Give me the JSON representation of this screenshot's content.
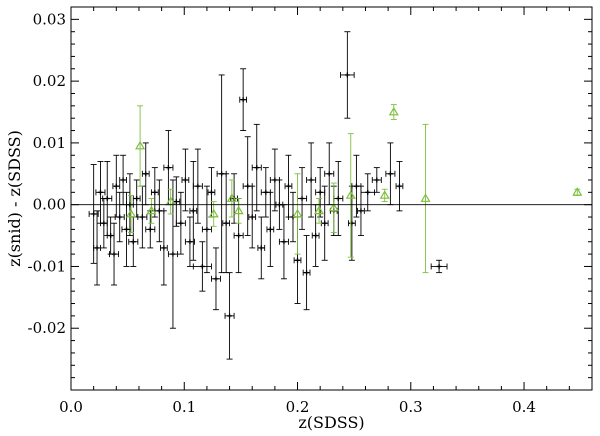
{
  "chart_data": {
    "type": "scatter",
    "xlabel": "z(SDSS)",
    "ylabel": "z(snid) - z(SDSS)",
    "xlim": [
      0.0,
      0.46
    ],
    "ylim": [
      -0.03,
      0.032
    ],
    "xticks": [
      0.0,
      0.1,
      0.2,
      0.3,
      0.4
    ],
    "xtick_labels": [
      "0.0",
      "0.1",
      "0.2",
      "0.3",
      "0.4"
    ],
    "yticks": [
      0.03,
      0.02,
      0.01,
      0.0,
      -0.01,
      -0.02
    ],
    "ytick_labels": [
      "0.03",
      "0.02",
      "0.01",
      "0.00",
      "-0.01",
      "-0.02"
    ],
    "reference_line_y": 0.0,
    "grid": false,
    "colors": {
      "series_black": "#000000",
      "series_green": "#7fbf3f",
      "axes": "#000000"
    },
    "series": [
      {
        "marker": "plus",
        "color": "#000000",
        "points": [
          {
            "x": 0.02,
            "y": -0.0015,
            "yerr": 0.008,
            "xerr": 0.004
          },
          {
            "x": 0.023,
            "y": -0.007,
            "yerr": 0.006,
            "xerr": 0.003
          },
          {
            "x": 0.026,
            "y": 0.002,
            "yerr": 0.005,
            "xerr": 0.004
          },
          {
            "x": 0.029,
            "y": -0.003,
            "yerr": 0.004,
            "xerr": 0.003
          },
          {
            "x": 0.032,
            "y": 0.001,
            "yerr": 0.006,
            "xerr": 0.004
          },
          {
            "x": 0.035,
            "y": -0.005,
            "yerr": 0.003,
            "xerr": 0.003
          },
          {
            "x": 0.038,
            "y": -0.008,
            "yerr": 0.005,
            "xerr": 0.004
          },
          {
            "x": 0.04,
            "y": 0.003,
            "yerr": 0.005,
            "xerr": 0.003
          },
          {
            "x": 0.043,
            "y": -0.002,
            "yerr": 0.004,
            "xerr": 0.004
          },
          {
            "x": 0.046,
            "y": 0.004,
            "yerr": 0.004,
            "xerr": 0.003
          },
          {
            "x": 0.049,
            "y": -0.004,
            "yerr": 0.006,
            "xerr": 0.004
          },
          {
            "x": 0.052,
            "y": 0.0,
            "yerr": 0.005,
            "xerr": 0.003
          },
          {
            "x": 0.055,
            "y": -0.006,
            "yerr": 0.004,
            "xerr": 0.004
          },
          {
            "x": 0.058,
            "y": 0.001,
            "yerr": 0.003,
            "xerr": 0.003
          },
          {
            "x": 0.063,
            "y": -0.002,
            "yerr": 0.005,
            "xerr": 0.004
          },
          {
            "x": 0.066,
            "y": 0.005,
            "yerr": 0.005,
            "xerr": 0.003
          },
          {
            "x": 0.07,
            "y": -0.004,
            "yerr": 0.003,
            "xerr": 0.004
          },
          {
            "x": 0.074,
            "y": 0.002,
            "yerr": 0.004,
            "xerr": 0.003
          },
          {
            "x": 0.078,
            "y": -0.001,
            "yerr": 0.005,
            "xerr": 0.004
          },
          {
            "x": 0.082,
            "y": -0.007,
            "yerr": 0.006,
            "xerr": 0.003
          },
          {
            "x": 0.086,
            "y": 0.006,
            "yerr": 0.006,
            "xerr": 0.004
          },
          {
            "x": 0.09,
            "y": -0.008,
            "yerr": 0.012,
            "xerr": 0.004
          },
          {
            "x": 0.093,
            "y": 0.0005,
            "yerr": 0.004,
            "xerr": 0.003
          },
          {
            "x": 0.097,
            "y": -0.003,
            "yerr": 0.005,
            "xerr": 0.004
          },
          {
            "x": 0.101,
            "y": 0.004,
            "yerr": 0.005,
            "xerr": 0.003
          },
          {
            "x": 0.105,
            "y": -0.006,
            "yerr": 0.004,
            "xerr": 0.004
          },
          {
            "x": 0.108,
            "y": -0.001,
            "yerr": 0.008,
            "xerr": 0.003
          },
          {
            "x": 0.112,
            "y": 0.003,
            "yerr": 0.006,
            "xerr": 0.004
          },
          {
            "x": 0.116,
            "y": -0.01,
            "yerr": 0.004,
            "xerr": 0.008
          },
          {
            "x": 0.12,
            "y": -0.004,
            "yerr": 0.007,
            "xerr": 0.004
          },
          {
            "x": 0.124,
            "y": 0.002,
            "yerr": 0.004,
            "xerr": 0.003
          },
          {
            "x": 0.128,
            "y": -0.012,
            "yerr": 0.005,
            "xerr": 0.004
          },
          {
            "x": 0.133,
            "y": 0.005,
            "yerr": 0.016,
            "xerr": 0.004
          },
          {
            "x": 0.137,
            "y": -0.003,
            "yerr": 0.008,
            "xerr": 0.003
          },
          {
            "x": 0.14,
            "y": -0.018,
            "yerr": 0.007,
            "xerr": 0.004
          },
          {
            "x": 0.144,
            "y": 0.001,
            "yerr": 0.004,
            "xerr": 0.003
          },
          {
            "x": 0.148,
            "y": -0.005,
            "yerr": 0.006,
            "xerr": 0.004
          },
          {
            "x": 0.152,
            "y": 0.017,
            "yerr": 0.005,
            "xerr": 0.003
          },
          {
            "x": 0.156,
            "y": 0.003,
            "yerr": 0.008,
            "xerr": 0.004
          },
          {
            "x": 0.16,
            "y": -0.002,
            "yerr": 0.005,
            "xerr": 0.003
          },
          {
            "x": 0.164,
            "y": 0.006,
            "yerr": 0.007,
            "xerr": 0.004
          },
          {
            "x": 0.168,
            "y": -0.007,
            "yerr": 0.005,
            "xerr": 0.003
          },
          {
            "x": 0.172,
            "y": 0.002,
            "yerr": 0.004,
            "xerr": 0.004
          },
          {
            "x": 0.176,
            "y": -0.004,
            "yerr": 0.006,
            "xerr": 0.003
          },
          {
            "x": 0.18,
            "y": 0.004,
            "yerr": 0.005,
            "xerr": 0.004
          },
          {
            "x": 0.184,
            "y": 0.0,
            "yerr": 0.004,
            "xerr": 0.003
          },
          {
            "x": 0.188,
            "y": -0.006,
            "yerr": 0.006,
            "xerr": 0.004
          },
          {
            "x": 0.192,
            "y": 0.003,
            "yerr": 0.005,
            "xerr": 0.003
          },
          {
            "x": 0.196,
            "y": -0.002,
            "yerr": 0.004,
            "xerr": 0.004
          },
          {
            "x": 0.2,
            "y": -0.009,
            "yerr": 0.007,
            "xerr": 0.003
          },
          {
            "x": 0.204,
            "y": 0.001,
            "yerr": 0.005,
            "xerr": 0.004
          },
          {
            "x": 0.208,
            "y": -0.011,
            "yerr": 0.006,
            "xerr": 0.003
          },
          {
            "x": 0.212,
            "y": 0.004,
            "yerr": 0.006,
            "xerr": 0.004
          },
          {
            "x": 0.216,
            "y": -0.005,
            "yerr": 0.005,
            "xerr": 0.003
          },
          {
            "x": 0.22,
            "y": 0.002,
            "yerr": 0.004,
            "xerr": 0.004
          },
          {
            "x": 0.224,
            "y": -0.003,
            "yerr": 0.006,
            "xerr": 0.003
          },
          {
            "x": 0.228,
            "y": 0.005,
            "yerr": 0.005,
            "xerr": 0.004
          },
          {
            "x": 0.232,
            "y": -0.001,
            "yerr": 0.004,
            "xerr": 0.003
          },
          {
            "x": 0.236,
            "y": 0.001,
            "yerr": 0.006,
            "xerr": 0.004
          },
          {
            "x": 0.244,
            "y": 0.021,
            "yerr": 0.007,
            "xerr": 0.006
          },
          {
            "x": 0.248,
            "y": -0.003,
            "yerr": 0.006,
            "xerr": 0.003
          },
          {
            "x": 0.252,
            "y": 0.003,
            "yerr": 0.005,
            "xerr": 0.004
          },
          {
            "x": 0.256,
            "y": -0.001,
            "yerr": 0.004,
            "xerr": 0.003
          },
          {
            "x": 0.262,
            "y": 0.002,
            "yerr": 0.003,
            "xerr": 0.006
          },
          {
            "x": 0.27,
            "y": 0.004,
            "yerr": 0.002,
            "xerr": 0.004
          },
          {
            "x": 0.282,
            "y": 0.005,
            "yerr": 0.005,
            "xerr": 0.004
          },
          {
            "x": 0.29,
            "y": 0.003,
            "yerr": 0.004,
            "xerr": 0.003
          },
          {
            "x": 0.325,
            "y": -0.01,
            "yerr": 0.001,
            "xerr": 0.007
          }
        ]
      },
      {
        "marker": "triangle",
        "color": "#7fbf3f",
        "points": [
          {
            "x": 0.053,
            "y": -0.0015,
            "yerr": 0.003
          },
          {
            "x": 0.061,
            "y": 0.0095,
            "yerr": 0.0065
          },
          {
            "x": 0.071,
            "y": -0.001,
            "yerr": 0.002
          },
          {
            "x": 0.088,
            "y": 0.0005,
            "yerr": 0.002
          },
          {
            "x": 0.126,
            "y": -0.0015,
            "yerr": 0.002
          },
          {
            "x": 0.142,
            "y": 0.001,
            "yerr": 0.003
          },
          {
            "x": 0.148,
            "y": -0.001,
            "yerr": 0.002
          },
          {
            "x": 0.2,
            "y": -0.0015,
            "yerr": 0.0065
          },
          {
            "x": 0.219,
            "y": -0.001,
            "yerr": 0.002
          },
          {
            "x": 0.232,
            "y": -0.0005,
            "yerr": 0.004
          },
          {
            "x": 0.247,
            "y": 0.0015,
            "yerr": 0.01
          },
          {
            "x": 0.277,
            "y": 0.0015,
            "yerr": 0.001
          },
          {
            "x": 0.285,
            "y": 0.015,
            "yerr": 0.0012
          },
          {
            "x": 0.313,
            "y": 0.001,
            "yerr": 0.012
          },
          {
            "x": 0.447,
            "y": 0.002,
            "yerr": 0.0005
          }
        ]
      }
    ]
  }
}
